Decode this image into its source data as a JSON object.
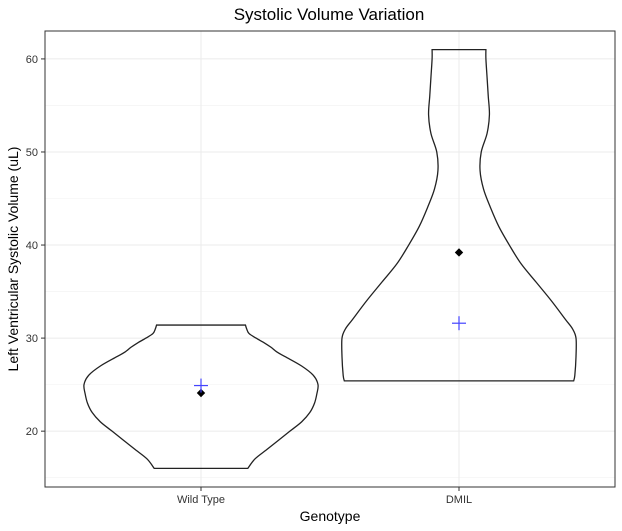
{
  "chart_data": {
    "type": "violin",
    "title": "Systolic Volume Variation",
    "xlabel": "Genotype",
    "ylabel": "Left Ventricular Systolic Volume (uL)",
    "ylim": [
      14,
      63
    ],
    "yticks": [
      20,
      30,
      40,
      50,
      60
    ],
    "categories": [
      "Wild Type",
      "DMIL"
    ],
    "grid": true,
    "legend": "none",
    "colors": {
      "outline": "#222222",
      "mean_marker": "#000000",
      "median_marker": "#4444ff",
      "grid": "#ebebeb",
      "panel_border": "#333333"
    },
    "series": [
      {
        "category": "Wild Type",
        "min": 16.0,
        "max": 31.4,
        "mean": 24.1,
        "median": 24.9,
        "density": [
          [
            16.0,
            0.4
          ],
          [
            17.0,
            0.46
          ],
          [
            18.0,
            0.56
          ],
          [
            19.0,
            0.66
          ],
          [
            20.0,
            0.76
          ],
          [
            21.0,
            0.86
          ],
          [
            22.0,
            0.93
          ],
          [
            23.0,
            0.97
          ],
          [
            24.0,
            0.99
          ],
          [
            25.0,
            1.0
          ],
          [
            26.0,
            0.96
          ],
          [
            27.0,
            0.86
          ],
          [
            28.0,
            0.72
          ],
          [
            28.5,
            0.65
          ],
          [
            29.0,
            0.6
          ],
          [
            29.5,
            0.54
          ],
          [
            30.0,
            0.47
          ],
          [
            30.5,
            0.41
          ],
          [
            31.0,
            0.39
          ],
          [
            31.4,
            0.38
          ]
        ]
      },
      {
        "category": "DMIL",
        "min": 25.4,
        "max": 61.0,
        "mean": 39.2,
        "median": 31.6,
        "density": [
          [
            25.4,
            0.98
          ],
          [
            26.0,
            0.99
          ],
          [
            28.0,
            1.0
          ],
          [
            30.0,
            1.0
          ],
          [
            31.0,
            0.97
          ],
          [
            32.0,
            0.91
          ],
          [
            34.0,
            0.79
          ],
          [
            36.0,
            0.66
          ],
          [
            38.0,
            0.53
          ],
          [
            40.0,
            0.43
          ],
          [
            42.0,
            0.34
          ],
          [
            44.0,
            0.27
          ],
          [
            46.0,
            0.21
          ],
          [
            48.0,
            0.18
          ],
          [
            50.0,
            0.19
          ],
          [
            52.0,
            0.24
          ],
          [
            54.0,
            0.26
          ],
          [
            56.0,
            0.25
          ],
          [
            58.0,
            0.24
          ],
          [
            60.0,
            0.23
          ],
          [
            61.0,
            0.23
          ]
        ]
      }
    ]
  }
}
